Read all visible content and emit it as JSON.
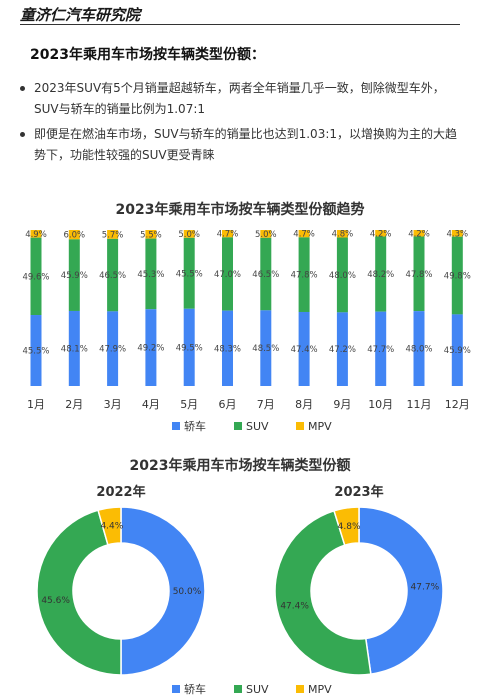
{
  "brand": "童济仁汽车研究院",
  "heading": "2023年乘用车市场按车辆类型份额：",
  "bullets": [
    "2023年SUV有5个月销量超越轿车，两者全年销量几乎一致，刨除微型车外，SUV与轿车的销量比例为1.07:1",
    "即便是在燃油车市场，SUV与轿车的销量比也达到1.03:1，以增换购为主的大趋势下，功能性较强的SUV更受青睐"
  ],
  "colors": {
    "sedan": "#4285f4",
    "suv": "#34a853",
    "mpv": "#fbbc04"
  },
  "chart_data": [
    {
      "type": "bar",
      "stacked": true,
      "title": "2023年乘用车市场按车辆类型份额趋势",
      "categories": [
        "1月",
        "2月",
        "3月",
        "4月",
        "5月",
        "6月",
        "7月",
        "8月",
        "9月",
        "10月",
        "11月",
        "12月"
      ],
      "series": [
        {
          "name": "轿车",
          "values": [
            45.5,
            48.1,
            47.9,
            49.2,
            49.5,
            48.3,
            48.5,
            47.4,
            47.2,
            47.7,
            48.0,
            45.9
          ],
          "labels": [
            "45.5%",
            "48.1%",
            "47.9%",
            "49.2%",
            "49.5%",
            "48.3%",
            "48.5%",
            "47.4%",
            "47.2%",
            "47.7%",
            "48.0%",
            "45.9%"
          ]
        },
        {
          "name": "SUV",
          "values": [
            49.6,
            45.9,
            46.5,
            45.3,
            45.5,
            47.0,
            46.5,
            47.8,
            48.0,
            48.2,
            47.8,
            49.8
          ],
          "labels": [
            "49.6%",
            "45.9%",
            "46.5%",
            "45.3%",
            "45.5%",
            "47.0%",
            "46.5%",
            "47.8%",
            "48.0%",
            "48.2%",
            "47.8%",
            "49.8%"
          ]
        },
        {
          "name": "MPV",
          "values": [
            4.9,
            6.0,
            5.7,
            5.5,
            5.0,
            4.7,
            5.0,
            4.7,
            4.8,
            4.2,
            4.2,
            4.3
          ],
          "labels": [
            "4.9%",
            "6.0%",
            "5.7%",
            "5.5%",
            "5.0%",
            "4.7%",
            "5.0%",
            "4.7%",
            "4.8%",
            "4.2%",
            "4.2%",
            "4.3%"
          ]
        }
      ],
      "legend": [
        "轿车",
        "SUV",
        "MPV"
      ],
      "legend_position": "bottom"
    },
    {
      "type": "pie",
      "donut": true,
      "title": "2023年乘用车市场按车辆类型份额",
      "charts": [
        {
          "subtitle": "2022年",
          "slices": [
            {
              "name": "轿车",
              "value": 50.0,
              "label": "50.0%"
            },
            {
              "name": "SUV",
              "value": 45.6,
              "label": "45.6%"
            },
            {
              "name": "MPV",
              "value": 4.4,
              "label": "4.4%"
            }
          ]
        },
        {
          "subtitle": "2023年",
          "slices": [
            {
              "name": "轿车",
              "value": 47.7,
              "label": "47.7%"
            },
            {
              "name": "SUV",
              "value": 47.4,
              "label": "47.4%"
            },
            {
              "name": "MPV",
              "value": 4.8,
              "label": "4.8%"
            }
          ]
        }
      ],
      "legend": [
        "轿车",
        "SUV",
        "MPV"
      ],
      "legend_position": "bottom"
    }
  ]
}
